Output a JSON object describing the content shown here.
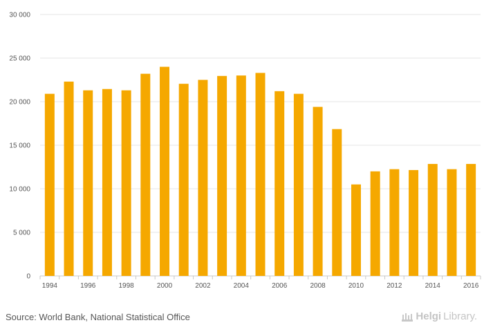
{
  "chart_data": {
    "type": "bar",
    "categories": [
      "1994",
      "1995",
      "1996",
      "1997",
      "1998",
      "1999",
      "2000",
      "2001",
      "2002",
      "2003",
      "2004",
      "2005",
      "2006",
      "2007",
      "2008",
      "2009",
      "2010",
      "2011",
      "2012",
      "2013",
      "2014",
      "2015",
      "2016"
    ],
    "values": [
      20900,
      22300,
      21300,
      21450,
      21300,
      23200,
      24000,
      22050,
      22500,
      22950,
      23000,
      23300,
      21200,
      20900,
      19400,
      16850,
      10500,
      12000,
      12250,
      12150,
      12850,
      12250,
      12850
    ],
    "x_tick_labels": [
      "1994",
      "1996",
      "1998",
      "2000",
      "2002",
      "2004",
      "2006",
      "2008",
      "2010",
      "2012",
      "2014",
      "2016"
    ],
    "y_ticks": [
      0,
      5000,
      10000,
      15000,
      20000,
      25000,
      30000
    ],
    "y_tick_labels": [
      "0",
      "5 000",
      "10 000",
      "15 000",
      "20 000",
      "25 000",
      "30 000"
    ],
    "ylim": [
      0,
      30000
    ],
    "title": "",
    "xlabel": "",
    "ylabel": "",
    "grid": true,
    "bar_color": "#f5a800"
  },
  "footer": {
    "source": "Source: World Bank, National Statistical Office",
    "brand_part1": "Helgi",
    "brand_part2": "Library."
  }
}
